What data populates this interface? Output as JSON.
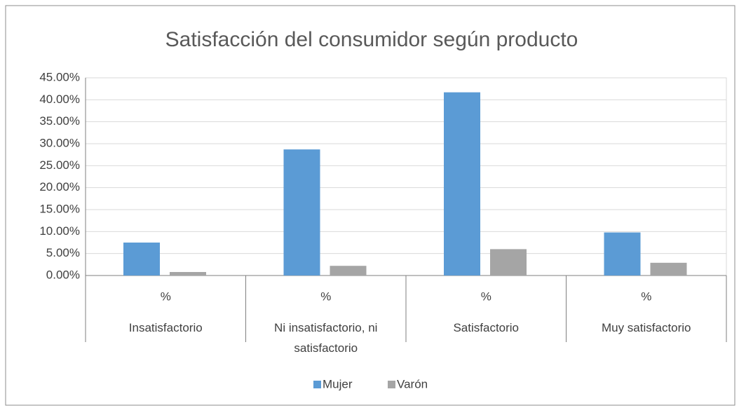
{
  "chart_data": {
    "type": "bar",
    "title": "Satisfacción del consumidor según producto",
    "categories": [
      "Insatisfactorio",
      "Ni insatisfactorio, ni satisfactorio",
      "Satisfactorio",
      "Muy satisfactorio"
    ],
    "subcategories": [
      "%",
      "%",
      "%",
      "%"
    ],
    "series": [
      {
        "name": "Mujer",
        "color": "#5b9bd5",
        "values": [
          7.5,
          28.7,
          41.7,
          9.8
        ]
      },
      {
        "name": "Varón",
        "color": "#a5a5a5",
        "values": [
          0.8,
          2.2,
          6.0,
          2.9
        ]
      }
    ],
    "ylim": [
      0,
      45
    ],
    "yticks": [
      {
        "value": 0,
        "label": "0.00%"
      },
      {
        "value": 5,
        "label": "5.00%"
      },
      {
        "value": 10,
        "label": "10.00%"
      },
      {
        "value": 15,
        "label": "15.00%"
      },
      {
        "value": 20,
        "label": "20.00%"
      },
      {
        "value": 25,
        "label": "25.00%"
      },
      {
        "value": 30,
        "label": "30.00%"
      },
      {
        "value": 35,
        "label": "35.00%"
      },
      {
        "value": 40,
        "label": "40.00%"
      },
      {
        "value": 45,
        "label": "45.00%"
      }
    ],
    "grid": true,
    "legend": "bottom"
  }
}
